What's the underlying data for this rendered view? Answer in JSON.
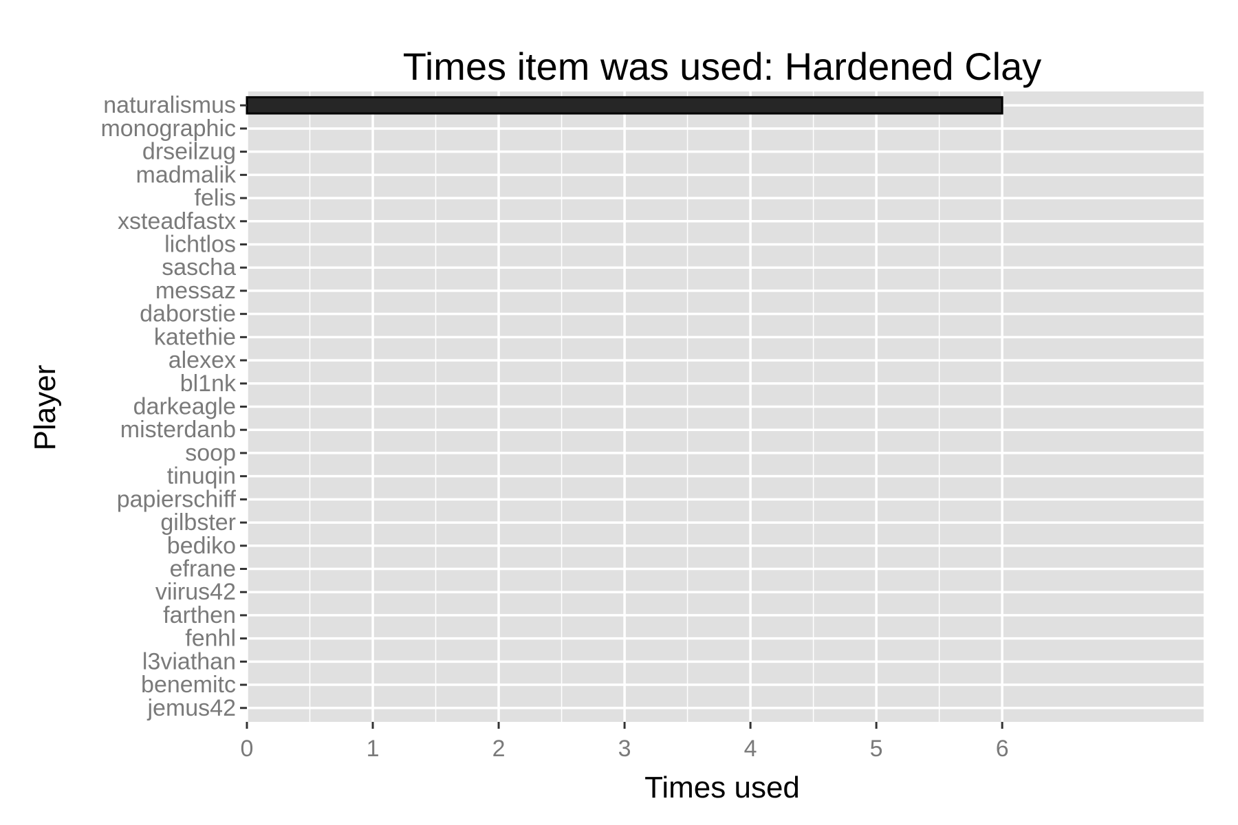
{
  "chart_data": {
    "type": "bar",
    "orientation": "horizontal",
    "title": "Times item was used: Hardened Clay",
    "xlabel": "Times used",
    "ylabel": "Player",
    "xlim": [
      0,
      7.6
    ],
    "x_ticks": [
      0,
      1,
      2,
      3,
      4,
      5,
      6
    ],
    "grid": true,
    "legend": "none",
    "categories": [
      "naturalismus",
      "monographic",
      "drseilzug",
      "madmalik",
      "felis",
      "xsteadfastx",
      "lichtlos",
      "sascha",
      "messaz",
      "daborstie",
      "katethie",
      "alexex",
      "bl1nk",
      "darkeagle",
      "misterdanb",
      "soop",
      "tinuqin",
      "papierschiff",
      "gilbster",
      "bediko",
      "efrane",
      "viirus42",
      "farthen",
      "fenhl",
      "l3viathan",
      "benemitc",
      "jemus42"
    ],
    "values": [
      6,
      0,
      0,
      0,
      0,
      0,
      0,
      0,
      0,
      0,
      0,
      0,
      0,
      0,
      0,
      0,
      0,
      0,
      0,
      0,
      0,
      0,
      0,
      0,
      0,
      0,
      0
    ],
    "colors": {
      "bar_fill": "#262626",
      "bar_stroke": "#000000",
      "panel": "#e0e0e0",
      "grid": "#ffffff",
      "tick": "#333333",
      "tick_label": "#7a7a7a"
    }
  }
}
